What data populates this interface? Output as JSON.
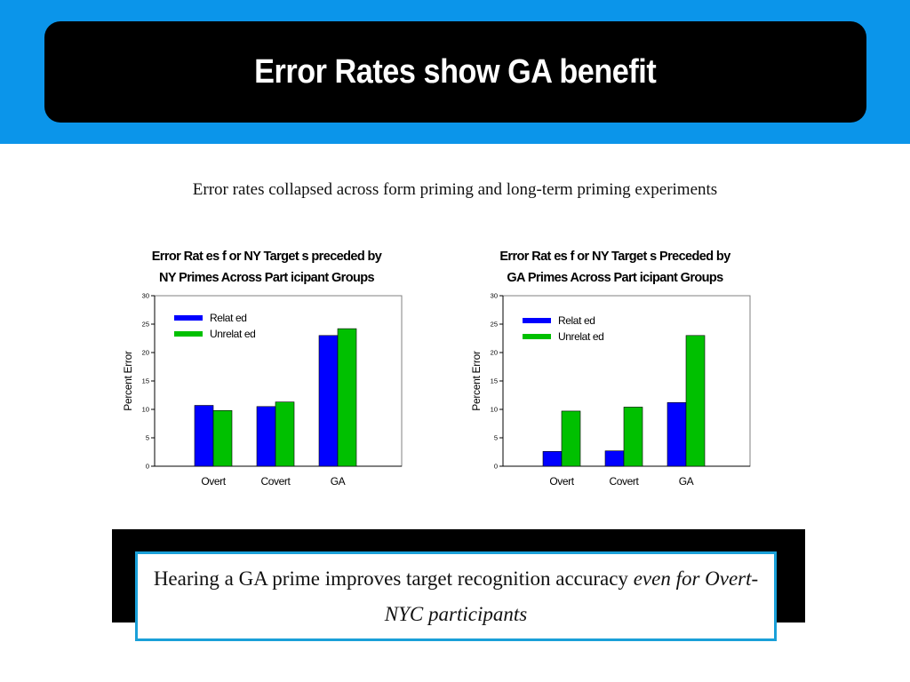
{
  "slide": {
    "title": "Error Rates show GA benefit",
    "subtitle": "Error rates collapsed across form priming and long-term priming experiments",
    "callout": {
      "normal": "Hearing a GA prime improves target recognition accuracy ",
      "italic": "even for Overt-NYC participants"
    }
  },
  "colors": {
    "banner": "#0b95ea",
    "related": "#0000ff",
    "unrelated": "#00c000"
  },
  "chart_data": [
    {
      "type": "bar",
      "title_lines": [
        "Error Rat es f or NY Target s preceded by",
        "NY Primes Across Part icipant  Groups"
      ],
      "categories": [
        "Overt",
        "Covert",
        "GA"
      ],
      "series": [
        {
          "name": "Relat ed",
          "values": [
            10.7,
            10.5,
            23.0
          ]
        },
        {
          "name": "Unrelat ed",
          "values": [
            9.8,
            11.3,
            24.2
          ]
        }
      ],
      "ylabel": "Percent  Error",
      "ylim": [
        0,
        30
      ],
      "yticks": [
        "0",
        "5",
        "10",
        "15",
        "20",
        "25",
        "30"
      ],
      "legend_position": "top-left"
    },
    {
      "type": "bar",
      "title_lines": [
        "Error Rat es f or NY Target s Preceded by",
        "GA Primes Across Part icipant  Groups"
      ],
      "categories": [
        "Overt",
        "Covert",
        "GA"
      ],
      "series": [
        {
          "name": "Relat ed",
          "values": [
            2.6,
            2.7,
            11.2
          ]
        },
        {
          "name": "Unrelat ed",
          "values": [
            9.7,
            10.4,
            23.0
          ]
        }
      ],
      "ylabel": "Percent  Error",
      "ylim": [
        0,
        30
      ],
      "yticks": [
        "0",
        "5",
        "10",
        "15",
        "20",
        "25",
        "30"
      ],
      "legend_position": "top-left"
    }
  ]
}
